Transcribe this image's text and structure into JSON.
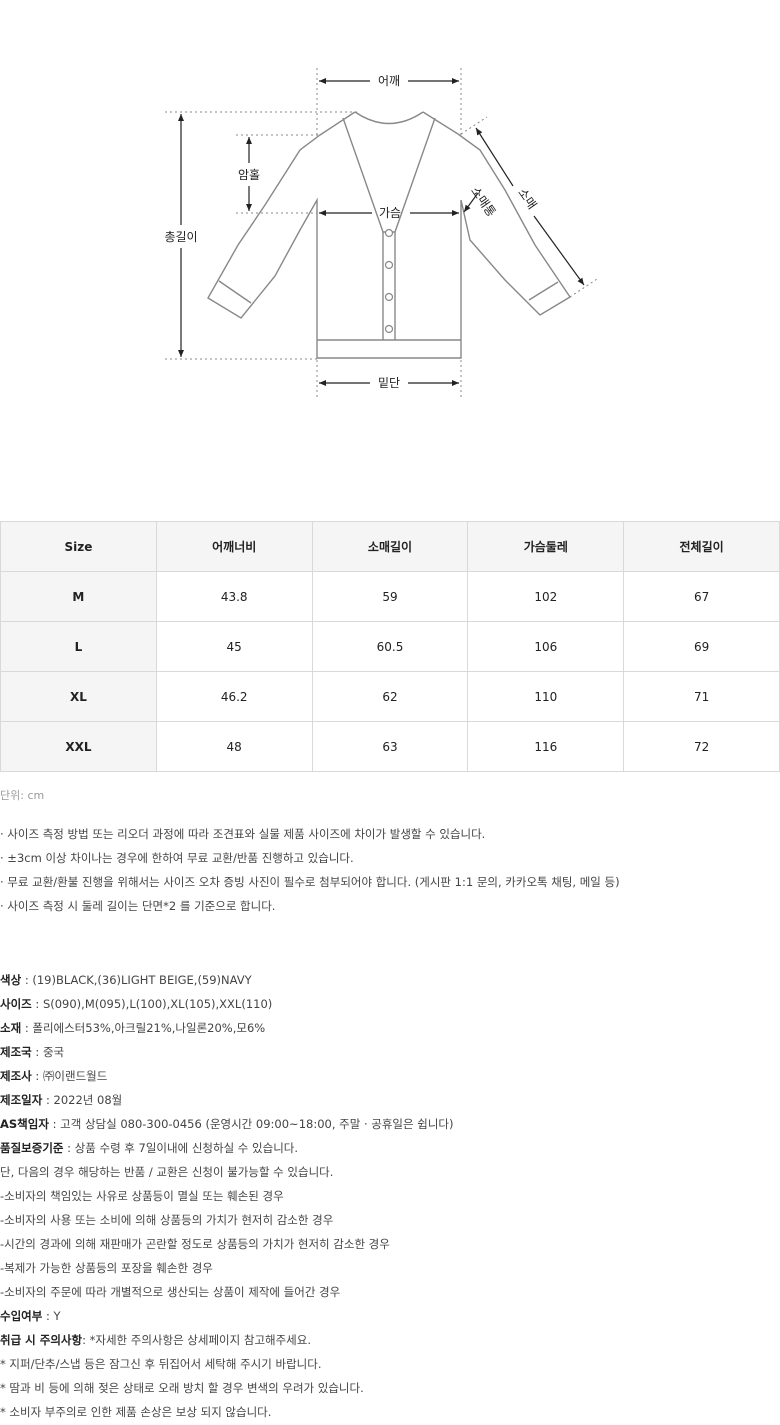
{
  "diagram": {
    "labels": {
      "shoulder": "어깨",
      "armhole": "암홀",
      "total_length": "총길이",
      "chest": "가슴",
      "sleeve_width": "소매통",
      "sleeve": "소매",
      "hem": "밑단"
    }
  },
  "size_table": {
    "headers": [
      "Size",
      "어깨너비",
      "소매길이",
      "가슴둘레",
      "전체길이"
    ],
    "rows": [
      [
        "M",
        "43.8",
        "59",
        "102",
        "67"
      ],
      [
        "L",
        "45",
        "60.5",
        "106",
        "69"
      ],
      [
        "XL",
        "46.2",
        "62",
        "110",
        "71"
      ],
      [
        "XXL",
        "48",
        "63",
        "116",
        "72"
      ]
    ]
  },
  "unit_note": "단위: cm",
  "notes": [
    "· 사이즈 측정 방법 또는 리오더 과정에 따라 조견표와 실물 제품 사이즈에 차이가 발생할 수 있습니다.",
    "· ±3cm 이상 차이나는 경우에 한하여 무료 교환/반품 진행하고 있습니다.",
    "· 무료 교환/환불 진행을 위해서는 사이즈 오차 증빙 사진이 필수로 첨부되어야 합니다. (게시판 1:1 문의, 카카오톡 채팅, 메일 등)",
    "· 사이즈 측정 시 둘레 길이는 단면*2 를 기준으로 합니다."
  ],
  "product_info": [
    {
      "label": "색상",
      "sep": " : ",
      "value": "(19)BLACK,(36)LIGHT BEIGE,(59)NAVY"
    },
    {
      "label": "사이즈",
      "sep": " : ",
      "value": "S(090),M(095),L(100),XL(105),XXL(110)"
    },
    {
      "label": "소재",
      "sep": " : ",
      "value": "폴리에스터53%,아크릴21%,나일론20%,모6%"
    },
    {
      "label": "제조국",
      "sep": " : ",
      "value": "중국"
    },
    {
      "label": "제조사",
      "sep": " : ",
      "value": "㈜이랜드월드"
    },
    {
      "label": "제조일자",
      "sep": " : ",
      "value": "2022년 08월"
    },
    {
      "label": "AS책임자",
      "sep": " : ",
      "value": "고객 상담실 080-300-0456 (운영시간 09:00~18:00, 주말 · 공휴일은 쉽니다)"
    },
    {
      "label": "품질보증기준",
      "sep": " : ",
      "value": "상품 수령 후 7일이내에 신청하실 수 있습니다."
    },
    {
      "label": "",
      "sep": "",
      "value": "단, 다음의 경우 해당하는 반품 / 교환은 신청이 불가능할 수 있습니다."
    },
    {
      "label": "",
      "sep": "",
      "value": "-소비자의 책임있는 사유로 상품등이 멸실 또는 훼손된 경우"
    },
    {
      "label": "",
      "sep": "",
      "value": "-소비자의 사용 또는 소비에 의해 상품등의 가치가 현저히 감소한 경우"
    },
    {
      "label": "",
      "sep": "",
      "value": "-시간의 경과에 의해 재판매가 곤란할 정도로 상품등의 가치가 현저히 감소한 경우"
    },
    {
      "label": "",
      "sep": "",
      "value": "-복제가 가능한 상품등의 포장을 훼손한 경우"
    },
    {
      "label": "",
      "sep": "",
      "value": "-소비자의 주문에 따라 개별적으로 생산되는 상품이 제작에 들어간 경우"
    },
    {
      "label": "수입여부",
      "sep": " : ",
      "value": "Y"
    },
    {
      "label": "취급 시 주의사항",
      "sep": ": ",
      "value": "*자세한 주의사항은 상세페이지 참고해주세요."
    },
    {
      "label": "",
      "sep": "",
      "value": "* 지퍼/단추/스냅 등은 잠그신 후 뒤집어서 세탁해 주시기 바랍니다."
    },
    {
      "label": "",
      "sep": "",
      "value": "* 땀과 비 등에 의해 젖은 상태로 오래 방치 할 경우 변색의 우려가 있습니다."
    },
    {
      "label": "",
      "sep": "",
      "value": "* 소비자 부주의로 인한 제품 손상은 보상 되지 않습니다."
    }
  ]
}
